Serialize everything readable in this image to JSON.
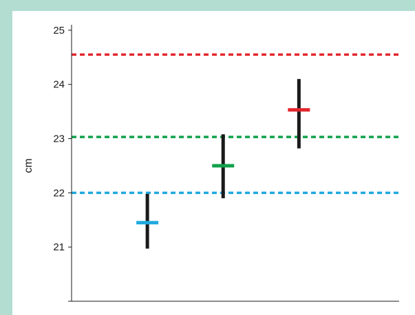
{
  "chart_data": {
    "type": "errorbar",
    "ylabel": "cm",
    "xlabel": "",
    "title": "",
    "ylim": [
      20,
      25.1
    ],
    "yticks": [
      21,
      22,
      23,
      24,
      25
    ],
    "ytick_labels": [
      "21",
      "22",
      "23",
      "24",
      "25"
    ],
    "grid": false,
    "legend": "none",
    "reference_lines": [
      {
        "y": 24.55,
        "color": "#e3262d",
        "style": "dashed"
      },
      {
        "y": 23.03,
        "color": "#12a14b",
        "style": "dashed"
      },
      {
        "y": 22.0,
        "color": "#1fa8df",
        "style": "dashed"
      }
    ],
    "points": [
      {
        "x": 1,
        "mean": 21.45,
        "low": 20.97,
        "high": 21.98,
        "color": "#1fa8df"
      },
      {
        "x": 2,
        "mean": 22.5,
        "low": 21.9,
        "high": 23.08,
        "color": "#12a14b"
      },
      {
        "x": 3,
        "mean": 23.53,
        "low": 22.82,
        "high": 24.1,
        "color": "#e3262d"
      }
    ],
    "xlim": [
      0,
      4.35
    ]
  }
}
